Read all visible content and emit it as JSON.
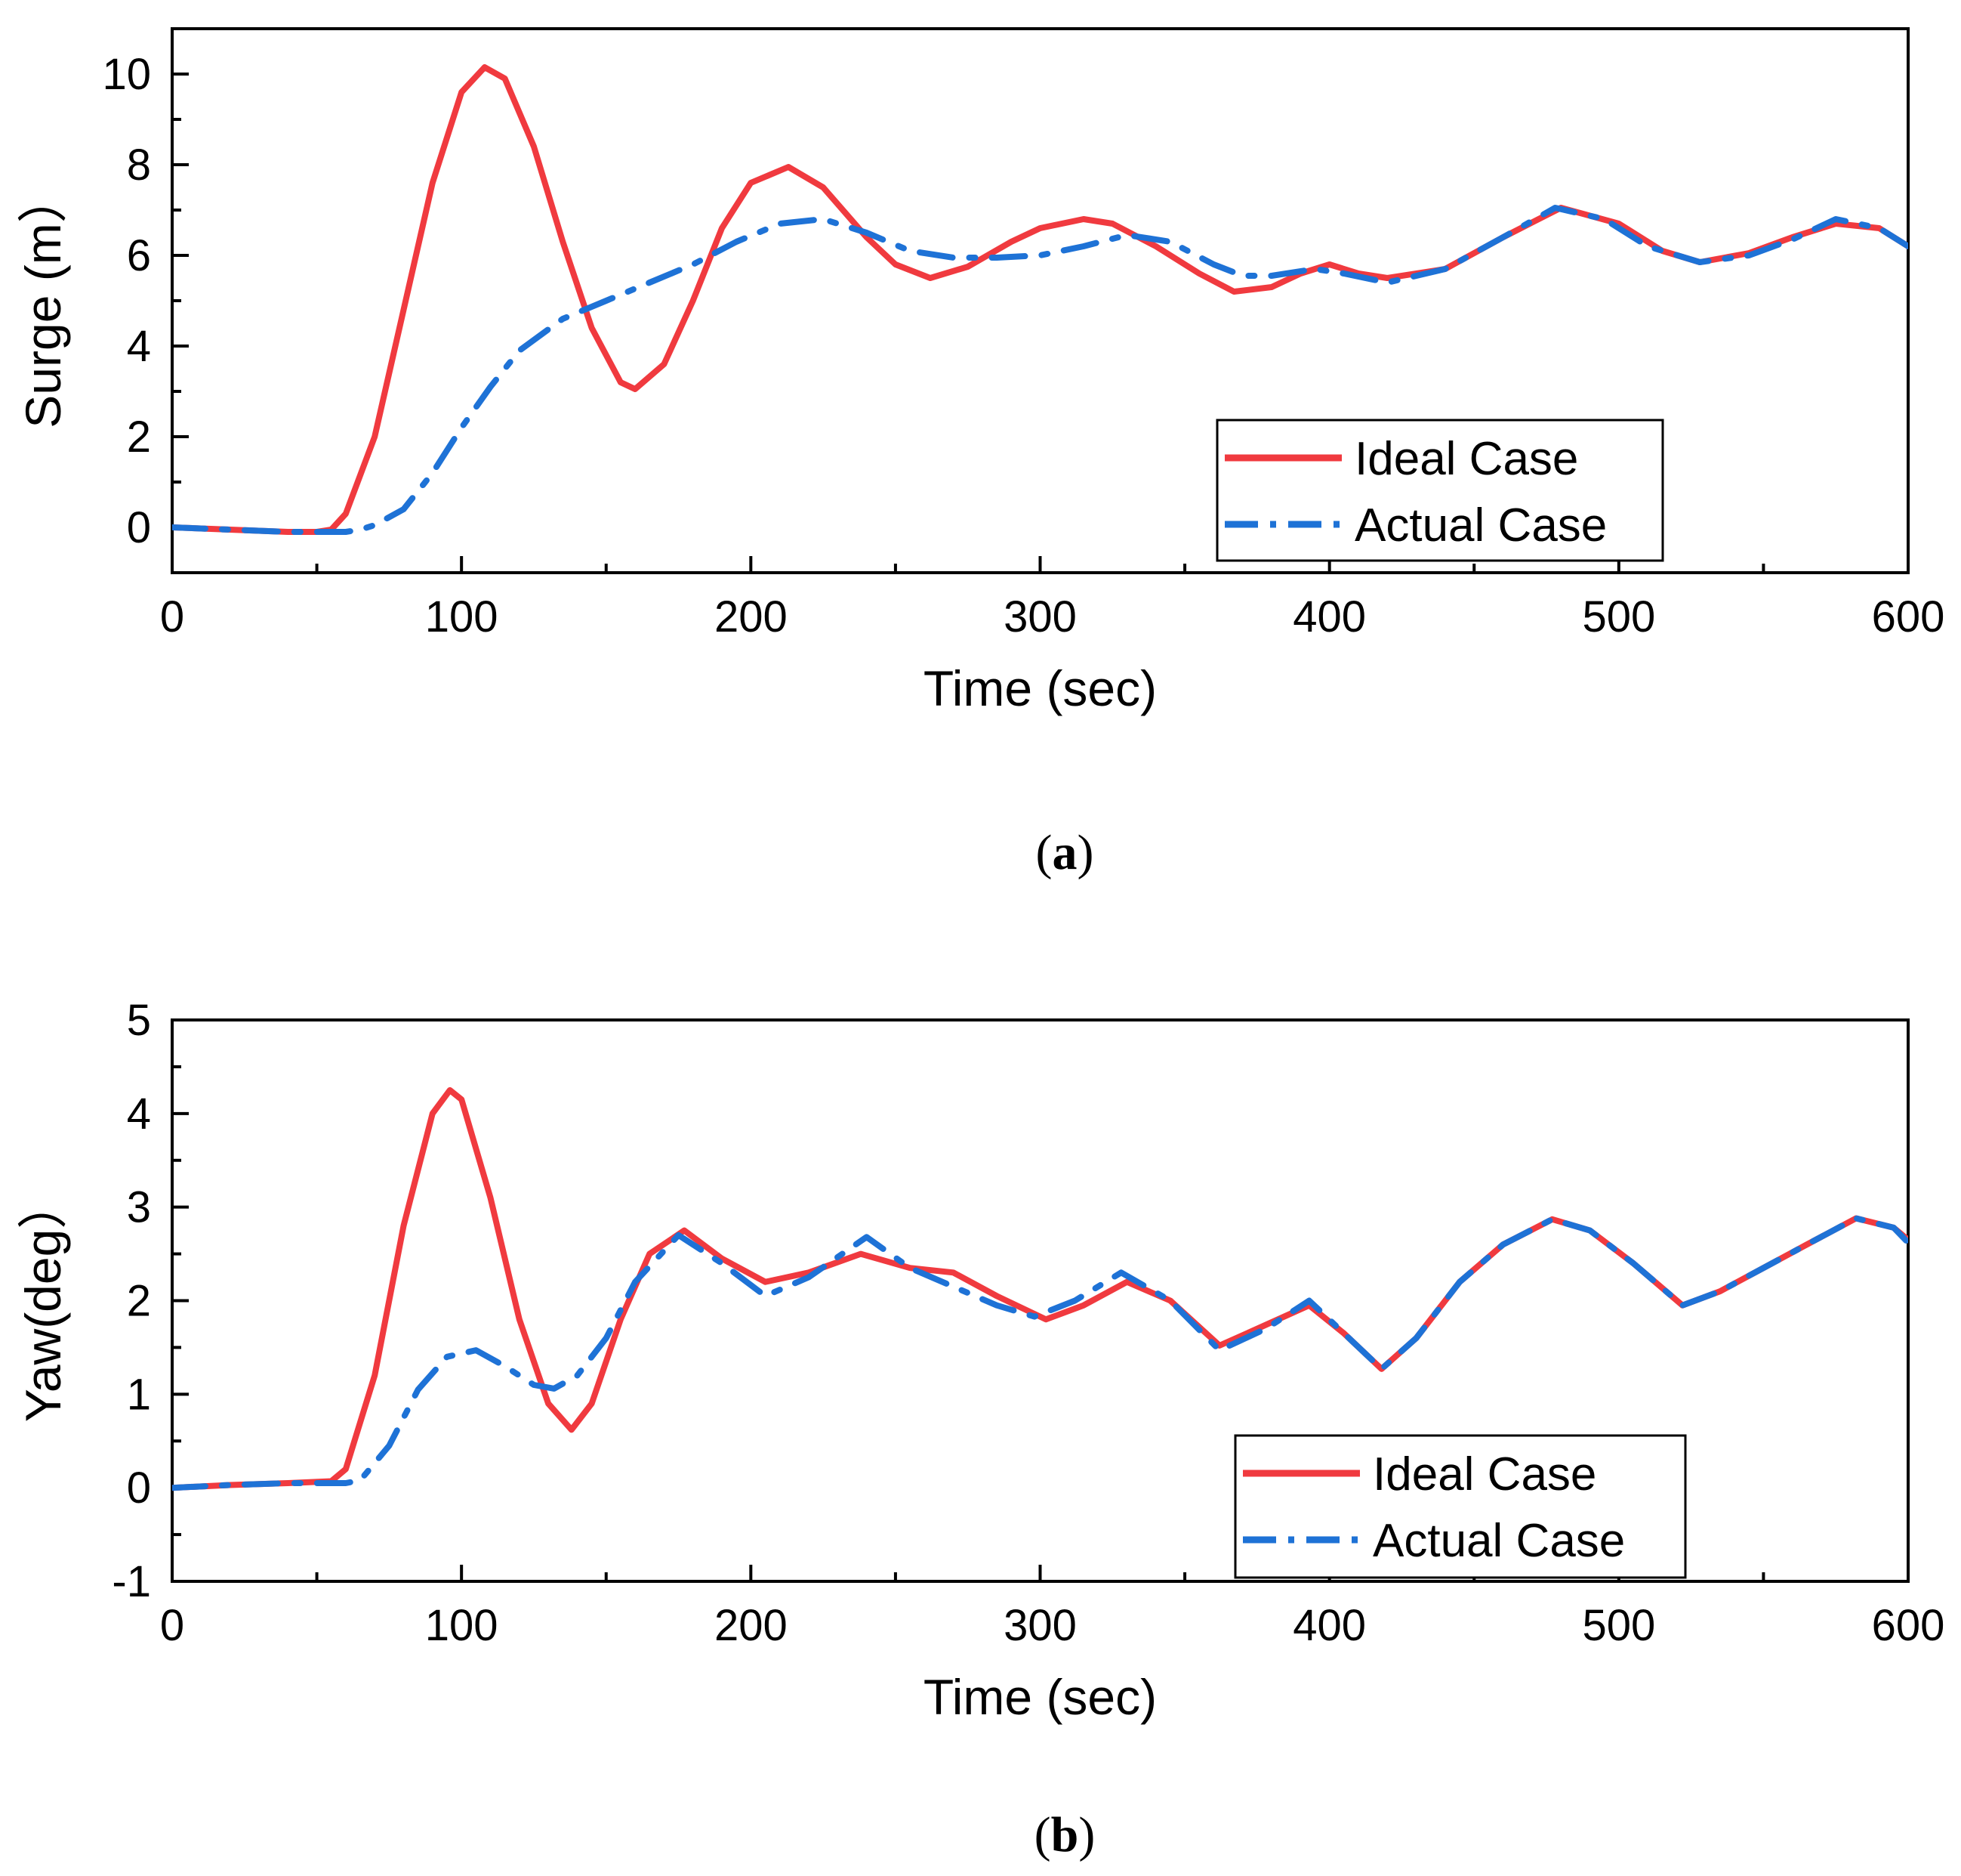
{
  "chart_data": [
    {
      "type": "line",
      "panel_label": "a",
      "xlabel": "Time (sec)",
      "ylabel": "Surge (m）",
      "xlim": [
        0,
        600
      ],
      "ylim": [
        -1,
        11
      ],
      "xticks": [
        "0",
        "100",
        "200",
        "300",
        "400",
        "500",
        "600"
      ],
      "yticks": [
        "0",
        "2",
        "4",
        "6",
        "8",
        "10"
      ],
      "legend": {
        "position": "bottom-right"
      },
      "series": [
        {
          "name": "Ideal Case",
          "color": "#f03a3f",
          "style": "solid",
          "x": [
            0,
            20,
            40,
            50,
            55,
            60,
            70,
            80,
            90,
            100,
            108,
            115,
            125,
            135,
            145,
            155,
            160,
            170,
            180,
            190,
            200,
            213,
            225,
            240,
            250,
            262,
            275,
            290,
            300,
            315,
            325,
            340,
            355,
            367,
            380,
            390,
            400,
            410,
            420,
            440,
            460,
            480,
            500,
            515,
            528,
            545,
            560,
            575,
            590,
            600
          ],
          "y": [
            0,
            -0.05,
            -0.1,
            -0.1,
            -0.05,
            0.3,
            2.0,
            4.8,
            7.6,
            9.6,
            10.15,
            9.9,
            8.4,
            6.3,
            4.4,
            3.2,
            3.05,
            3.6,
            5.0,
            6.6,
            7.6,
            7.95,
            7.5,
            6.4,
            5.8,
            5.5,
            5.75,
            6.3,
            6.6,
            6.8,
            6.7,
            6.2,
            5.6,
            5.2,
            5.3,
            5.6,
            5.8,
            5.6,
            5.5,
            5.7,
            6.4,
            7.05,
            6.7,
            6.1,
            5.85,
            6.05,
            6.4,
            6.7,
            6.6,
            6.2
          ]
        },
        {
          "name": "Actual Case",
          "color": "#1e72d6",
          "style": "dash-dot",
          "x": [
            0,
            20,
            40,
            60,
            65,
            70,
            80,
            90,
            100,
            110,
            120,
            135,
            150,
            165,
            180,
            195,
            210,
            225,
            240,
            255,
            270,
            285,
            300,
            315,
            330,
            345,
            360,
            370,
            380,
            395,
            405,
            420,
            440,
            460,
            478,
            495,
            510,
            528,
            545,
            560,
            575,
            590,
            600
          ],
          "y": [
            0,
            -0.05,
            -0.1,
            -0.1,
            -0.05,
            0.05,
            0.4,
            1.2,
            2.2,
            3.1,
            3.9,
            4.6,
            5.0,
            5.4,
            5.8,
            6.3,
            6.7,
            6.8,
            6.5,
            6.1,
            5.95,
            5.95,
            6.0,
            6.2,
            6.45,
            6.3,
            5.8,
            5.55,
            5.55,
            5.7,
            5.6,
            5.4,
            5.7,
            6.4,
            7.05,
            6.8,
            6.2,
            5.85,
            6.0,
            6.35,
            6.8,
            6.6,
            6.2
          ]
        }
      ]
    },
    {
      "type": "line",
      "panel_label": "b",
      "xlabel": "Time (sec)",
      "ylabel": "Yaw(deg）",
      "xlim": [
        0,
        600
      ],
      "ylim": [
        -1,
        5
      ],
      "xticks": [
        "0",
        "100",
        "200",
        "300",
        "400",
        "500",
        "600"
      ],
      "yticks": [
        "-1",
        "0",
        "1",
        "2",
        "3",
        "4",
        "5"
      ],
      "legend": {
        "position": "bottom-right"
      },
      "series": [
        {
          "name": "Ideal Case",
          "color": "#f03a3f",
          "style": "solid",
          "x": [
            0,
            20,
            40,
            55,
            60,
            70,
            80,
            90,
            96,
            100,
            110,
            120,
            130,
            138,
            145,
            155,
            165,
            177,
            190,
            205,
            220,
            238,
            255,
            270,
            285,
            302,
            315,
            330,
            345,
            362,
            375,
            393,
            405,
            418,
            430,
            445,
            460,
            477,
            490,
            505,
            522,
            535,
            550,
            565,
            582,
            595,
            600
          ],
          "y": [
            0,
            0.03,
            0.05,
            0.07,
            0.2,
            1.2,
            2.8,
            4.0,
            4.25,
            4.15,
            3.1,
            1.8,
            0.9,
            0.62,
            0.9,
            1.8,
            2.5,
            2.75,
            2.45,
            2.2,
            2.3,
            2.5,
            2.35,
            2.3,
            2.05,
            1.8,
            1.95,
            2.2,
            2.0,
            1.52,
            1.7,
            1.95,
            1.65,
            1.27,
            1.6,
            2.2,
            2.6,
            2.87,
            2.75,
            2.4,
            1.95,
            2.1,
            2.35,
            2.6,
            2.88,
            2.78,
            2.65
          ]
        },
        {
          "name": "Actual Case",
          "color": "#1e72d6",
          "style": "dash-dot",
          "x": [
            0,
            20,
            40,
            60,
            65,
            75,
            85,
            95,
            105,
            115,
            125,
            132,
            140,
            150,
            160,
            175,
            190,
            205,
            220,
            240,
            255,
            270,
            285,
            298,
            312,
            328,
            345,
            362,
            378,
            393,
            405,
            418,
            430,
            445,
            460,
            477,
            490,
            505,
            522,
            535,
            550,
            565,
            582,
            595,
            600
          ],
          "y": [
            0,
            0.03,
            0.05,
            0.05,
            0.08,
            0.45,
            1.05,
            1.4,
            1.47,
            1.3,
            1.1,
            1.06,
            1.2,
            1.6,
            2.2,
            2.7,
            2.4,
            2.05,
            2.25,
            2.68,
            2.35,
            2.15,
            1.95,
            1.83,
            2.0,
            2.3,
            2.0,
            1.47,
            1.7,
            2.0,
            1.65,
            1.27,
            1.6,
            2.2,
            2.6,
            2.87,
            2.75,
            2.4,
            1.95,
            2.1,
            2.35,
            2.6,
            2.88,
            2.78,
            2.62
          ]
        }
      ]
    }
  ]
}
